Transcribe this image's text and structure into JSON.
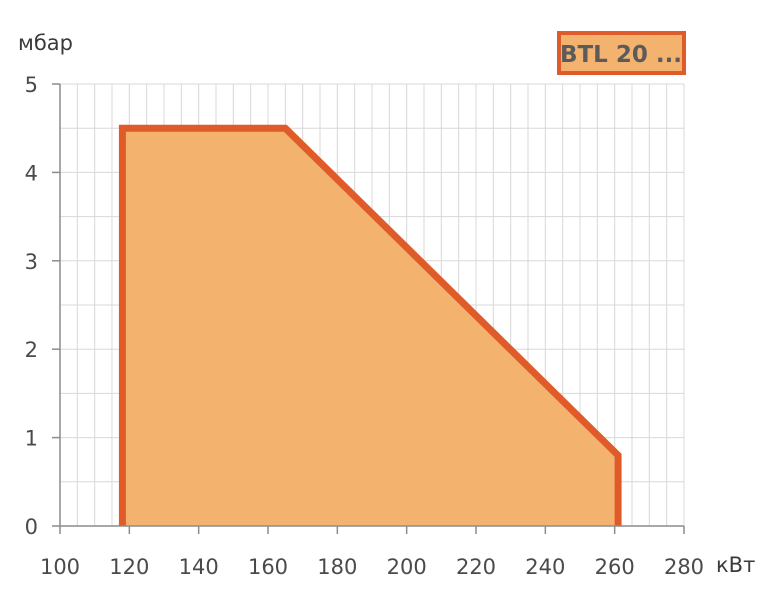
{
  "chart_data": {
    "type": "area",
    "title": "",
    "badge": "BTL 20 ...",
    "xlabel": "кВт",
    "ylabel": "мбар",
    "xlim": [
      100,
      280
    ],
    "ylim": [
      0,
      5
    ],
    "x_ticks": [
      100,
      120,
      140,
      160,
      180,
      200,
      220,
      240,
      260,
      280
    ],
    "y_ticks": [
      0,
      1,
      2,
      3,
      4,
      5
    ],
    "grid": true,
    "x_minor_step": 5,
    "y_minor_step": 0.5,
    "series": [
      {
        "points": [
          [
            118,
            0
          ],
          [
            118,
            4.5
          ],
          [
            165,
            4.5
          ],
          [
            261,
            0.8
          ],
          [
            261,
            0
          ]
        ]
      }
    ]
  },
  "colors": {
    "fill": "#f4b26f",
    "outline": "#e05b2a",
    "grid": "#d8d8d8",
    "axis": "#8c8c8c",
    "badge_fill": "#f4b26f",
    "badge_border": "#e05b2a"
  }
}
